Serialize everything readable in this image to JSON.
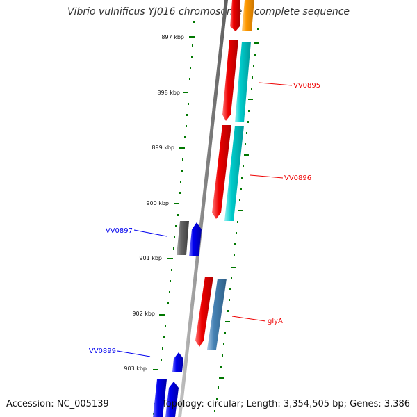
{
  "title": "Vibrio vulnificus YJ016 chromosome I, complete sequence",
  "accession": "Accession: NC_005139",
  "summary": "Topology: circular; Length: 3,354,505 bp; Genes: 3,386",
  "colors": {
    "forward_gene": "#ee0000",
    "reverse_gene": "#0000ee",
    "cds_forward": "#00cccc",
    "cds_misc": "#ff9900",
    "cds_glyA": "#4682b4",
    "pseudo": "#555555",
    "ruler": "#007700",
    "backbone": "#888888"
  },
  "ruler": {
    "unit": "kbp",
    "ticks": [
      "897 kbp",
      "898 kbp",
      "899 kbp",
      "900 kbp",
      "901 kbp",
      "902 kbp",
      "903 kbp"
    ]
  },
  "genes": [
    {
      "label": "VV0895",
      "strand": "forward",
      "color": "#ee0000"
    },
    {
      "label": "VV0896",
      "strand": "forward",
      "color": "#ee0000"
    },
    {
      "label": "VV0897",
      "strand": "reverse",
      "color": "#0000ee"
    },
    {
      "label": "glyA",
      "strand": "forward",
      "color": "#ee0000"
    },
    {
      "label": "VV0899",
      "strand": "reverse",
      "color": "#0000ee"
    }
  ]
}
